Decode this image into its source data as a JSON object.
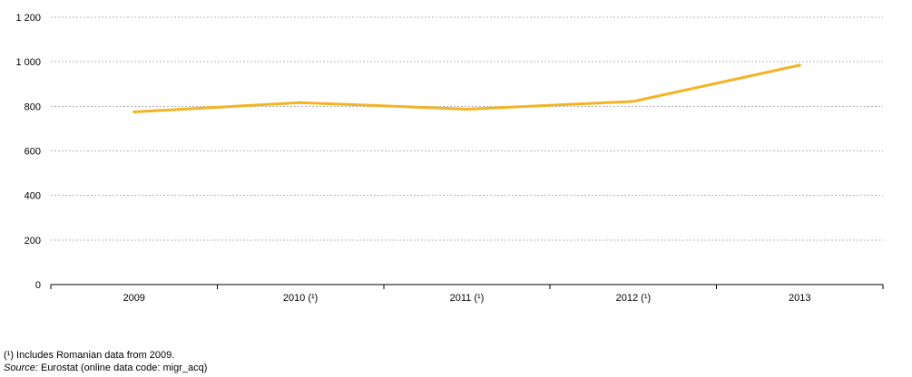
{
  "chart_data": {
    "type": "line",
    "categories": [
      "2009",
      "2010 (¹)",
      "2011 (¹)",
      "2012 (¹)",
      "2013"
    ],
    "series": [
      {
        "values": [
          775,
          817,
          787,
          822,
          985
        ],
        "color": "#f5b324"
      }
    ],
    "ylim": [
      0,
      1200
    ],
    "yticks": [
      0,
      200,
      400,
      600,
      800,
      1000,
      1200
    ],
    "yticklabels": [
      "0",
      "200",
      "400",
      "600",
      "800",
      "1 000",
      "1 200"
    ],
    "grid": true,
    "legend": "none"
  },
  "footnote": "(¹) Includes Romanian data from 2009.",
  "source_label": "Source:",
  "source_text": " Eurostat (online data code: migr_acq)"
}
